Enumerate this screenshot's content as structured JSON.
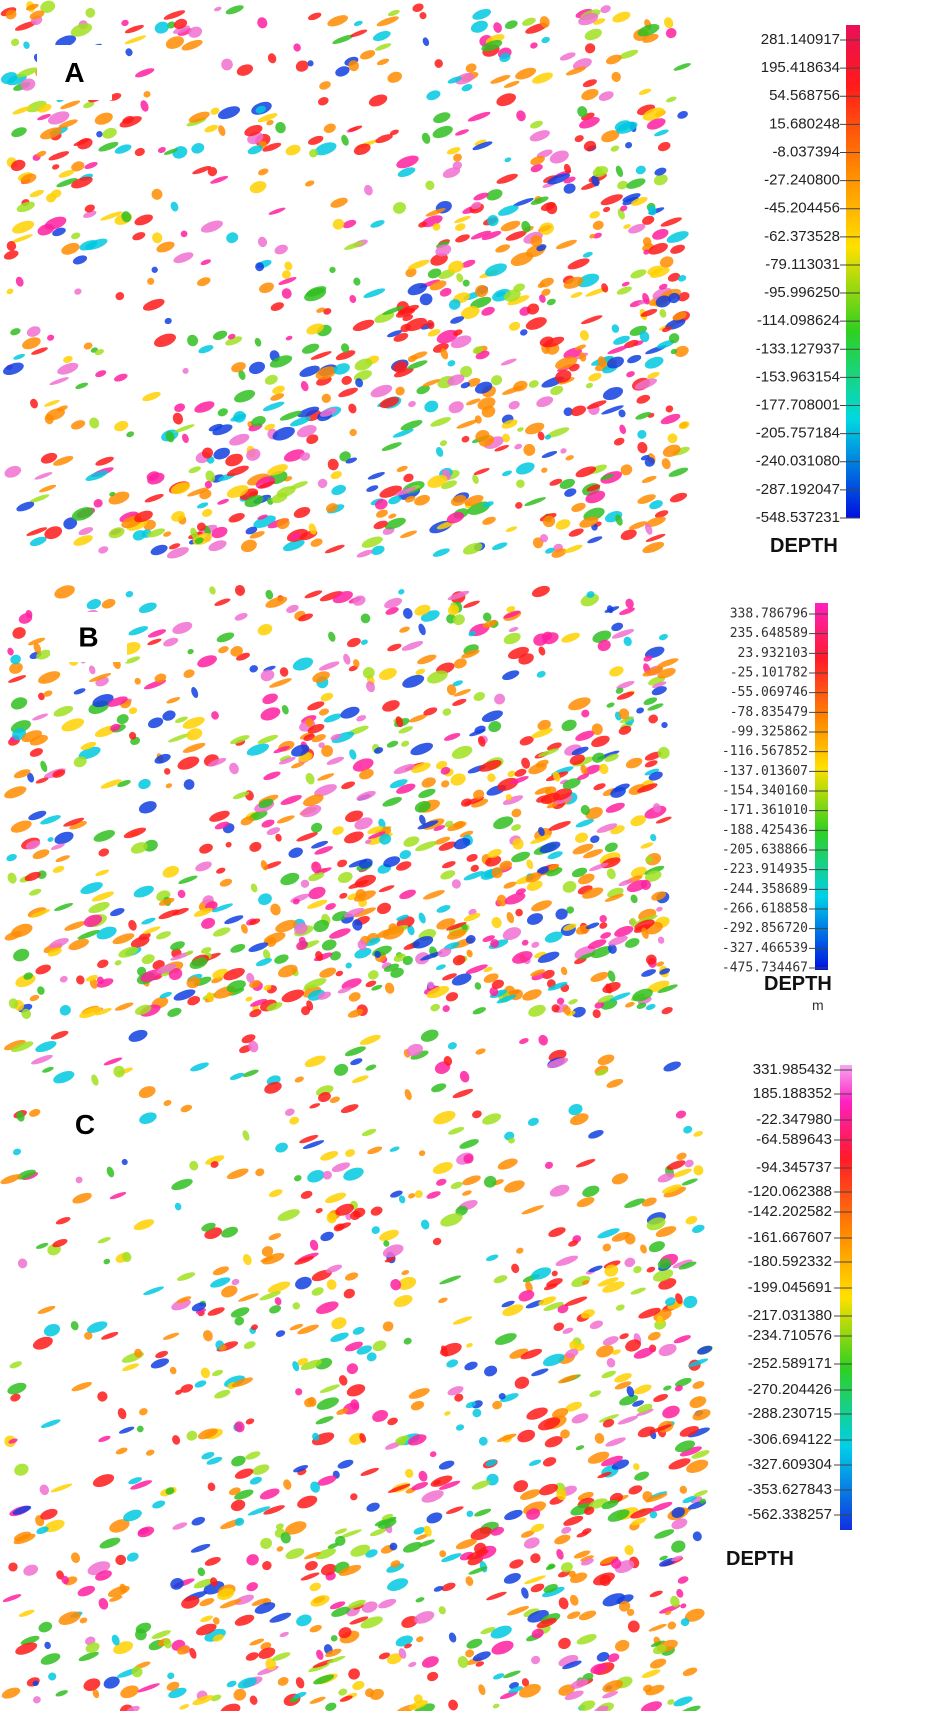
{
  "panels": [
    {
      "label": "A",
      "colorbar": {
        "title": "DEPTH",
        "ticks": [
          "281.140917",
          "195.418634",
          "54.568756",
          "15.680248",
          "-8.037394",
          "-27.240800",
          "-45.204456",
          "-62.373528",
          "-79.113031",
          "-95.996250",
          "-114.098624",
          "-133.127937",
          "-153.963154",
          "-177.708001",
          "-205.757184",
          "-240.031080",
          "-287.192047",
          "-548.537231"
        ]
      }
    },
    {
      "label": "B",
      "colorbar": {
        "title": "DEPTH",
        "unit": "m",
        "ticks": [
          "338.786796",
          "235.648589",
          "23.932103",
          "-25.101782",
          "-55.069746",
          "-78.835479",
          "-99.325862",
          "-116.567852",
          "-137.013607",
          "-154.340160",
          "-171.361010",
          "-188.425436",
          "-205.638866",
          "-223.914935",
          "-244.358689",
          "-266.618858",
          "-292.856720",
          "-327.466539",
          "-475.734467"
        ]
      }
    },
    {
      "label": "C",
      "colorbar": {
        "title": "DEPTH",
        "ticks": [
          "331.985432",
          "185.188352",
          "-22.347980",
          "-64.589643",
          "-94.345737",
          "-120.062388",
          "-142.202582",
          "-161.667607",
          "-180.592332",
          "-199.045691",
          "-217.031380",
          "-234.710576",
          "-252.589171",
          "-270.204426",
          "-288.230715",
          "-306.694122",
          "-327.609304",
          "-353.627843",
          "-562.338257"
        ]
      }
    }
  ]
}
